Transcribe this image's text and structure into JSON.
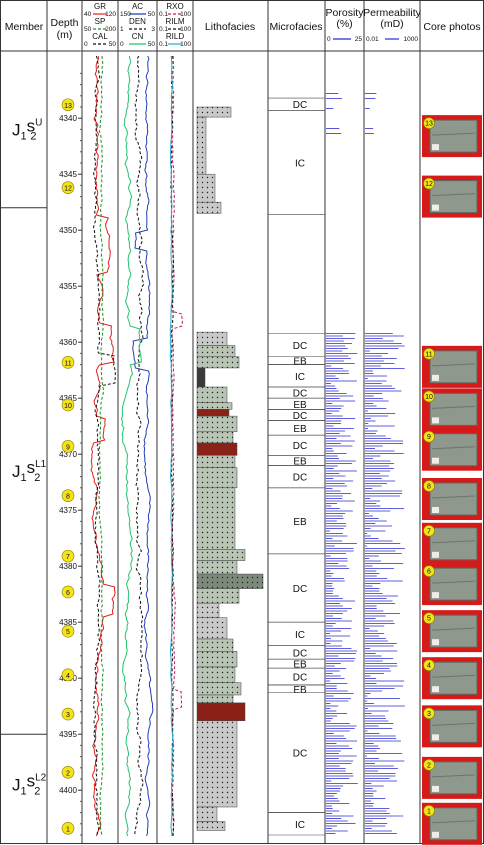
{
  "headers": {
    "member": "Member",
    "depth": "Depth (m)",
    "lithofacies": "Lithofacies",
    "microfacies": "Microfacies",
    "porosity": "Porosity (%)",
    "permeability": "Permeability (mD)",
    "core_photos": "Core photos"
  },
  "curve_groups": [
    {
      "curves": [
        {
          "name": "GR",
          "min": "40",
          "max": "120",
          "color": "#e0201c",
          "style": "solid"
        },
        {
          "name": "SP",
          "min": "50",
          "max": "200",
          "color": "#1a8f1a",
          "style": "dashed"
        },
        {
          "name": "CAL",
          "min": "0",
          "max": "50",
          "color": "#111111",
          "style": "dashed"
        }
      ]
    },
    {
      "curves": [
        {
          "name": "AC",
          "min": "150",
          "max": "50",
          "color": "#1f3fb0",
          "style": "solid"
        },
        {
          "name": "DEN",
          "min": "1",
          "max": "3",
          "color": "#111111",
          "style": "dashed"
        },
        {
          "name": "CN",
          "min": "0",
          "max": "50",
          "color": "#22c46a",
          "style": "solid"
        }
      ]
    },
    {
      "curves": [
        {
          "name": "RXO",
          "min": "0.1",
          "max": "100",
          "color": "#c4185a",
          "style": "dashed"
        },
        {
          "name": "RILM",
          "min": "0.1",
          "max": "100",
          "color": "#111111",
          "style": "dashed"
        },
        {
          "name": "RILD",
          "min": "0.1",
          "max": "100",
          "color": "#22aacc",
          "style": "solid"
        }
      ]
    }
  ],
  "porosity_scale": {
    "min": "0",
    "max": "25",
    "color": "#2b2bd0"
  },
  "permeability_scale": {
    "min": "0.01",
    "max": "1000",
    "color": "#2b2bd0"
  },
  "members": [
    {
      "symbol": "J",
      "sub": "1",
      "letter": "s",
      "sup": "U",
      "sub2": "2",
      "top": 4334,
      "bottom": 4348
    },
    {
      "symbol": "J",
      "sub": "1",
      "letter": "s",
      "sup": "L1",
      "sub2": "2",
      "top": 4348,
      "bottom": 4395
    },
    {
      "symbol": "J",
      "sub": "1",
      "letter": "s",
      "sup": "L2",
      "sub2": "2",
      "top": 4395,
      "bottom": 4404
    }
  ],
  "depth_range": [
    4334,
    4404
  ],
  "depth_ticks": [
    "4340",
    "4345",
    "4350",
    "4355",
    "4360",
    "4365",
    "4370",
    "4375",
    "4380",
    "4385",
    "4390",
    "4395",
    "4400"
  ],
  "sample_markers": [
    {
      "label": "13",
      "depth": 4338.8
    },
    {
      "label": "12",
      "depth": 4346.2
    },
    {
      "label": "11",
      "depth": 4361.8
    },
    {
      "label": "10",
      "depth": 4365.6
    },
    {
      "label": "9",
      "depth": 4369.3
    },
    {
      "label": "8",
      "depth": 4373.7
    },
    {
      "label": "7",
      "depth": 4379.1
    },
    {
      "label": "6",
      "depth": 4382.3
    },
    {
      "label": "5",
      "depth": 4385.8
    },
    {
      "label": "4",
      "depth": 4389.7
    },
    {
      "label": "3",
      "depth": 4393.2
    },
    {
      "label": "2",
      "depth": 4398.4
    },
    {
      "label": "1",
      "depth": 4403.4
    }
  ],
  "microfacies": [
    {
      "label": "DC",
      "top": 4338.2,
      "bottom": 4339.3
    },
    {
      "label": "IC",
      "top": 4339.3,
      "bottom": 4348.6
    },
    {
      "label": "DC",
      "top": 4359.2,
      "bottom": 4361.3
    },
    {
      "label": "EB",
      "top": 4361.3,
      "bottom": 4362.0
    },
    {
      "label": "IC",
      "top": 4362.0,
      "bottom": 4364.0
    },
    {
      "label": "DC",
      "top": 4364.0,
      "bottom": 4365.0
    },
    {
      "label": "EB",
      "top": 4365.0,
      "bottom": 4366.0
    },
    {
      "label": "DC",
      "top": 4366.0,
      "bottom": 4367.0
    },
    {
      "label": "EB",
      "top": 4367.0,
      "bottom": 4368.3
    },
    {
      "label": "DC",
      "top": 4368.3,
      "bottom": 4370.1
    },
    {
      "label": "EB",
      "top": 4370.1,
      "bottom": 4371.0
    },
    {
      "label": "DC",
      "top": 4371.0,
      "bottom": 4373.0
    },
    {
      "label": "EB",
      "top": 4373.0,
      "bottom": 4378.9
    },
    {
      "label": "DC",
      "top": 4378.9,
      "bottom": 4385.0
    },
    {
      "label": "IC",
      "top": 4385.0,
      "bottom": 4387.1
    },
    {
      "label": "DC",
      "top": 4387.1,
      "bottom": 4388.3
    },
    {
      "label": "EB",
      "top": 4388.3,
      "bottom": 4389.1
    },
    {
      "label": "DC",
      "top": 4389.1,
      "bottom": 4390.6
    },
    {
      "label": "EB",
      "top": 4390.6,
      "bottom": 4391.3
    },
    {
      "label": "DC",
      "top": 4391.3,
      "bottom": 4402.0
    },
    {
      "label": "IC",
      "top": 4402.0,
      "bottom": 4404.0
    }
  ],
  "lithofacies_colors": {
    "sandstone": "#b8c4b4",
    "dark_sandstone": "#8a2218",
    "mudstone": "#3a3a3a",
    "siltstone": "#c9c9c9",
    "conglomerate": "#7c8a7a"
  },
  "core_photo_frame_color": "#d61a1a",
  "core_photos": [
    {
      "label": "13",
      "depth": 4341.6
    },
    {
      "label": "12",
      "depth": 4347.0
    },
    {
      "label": "11",
      "depth": 4362.2
    },
    {
      "label": "10",
      "depth": 4366.0
    },
    {
      "label": "9",
      "depth": 4369.6
    },
    {
      "label": "8",
      "depth": 4374.0
    },
    {
      "label": "7",
      "depth": 4378.0
    },
    {
      "label": "6",
      "depth": 4381.6
    },
    {
      "label": "5",
      "depth": 4385.8
    },
    {
      "label": "4",
      "depth": 4390.0
    },
    {
      "label": "3",
      "depth": 4394.3
    },
    {
      "label": "2",
      "depth": 4398.9
    },
    {
      "label": "1",
      "depth": 4403.0
    }
  ]
}
